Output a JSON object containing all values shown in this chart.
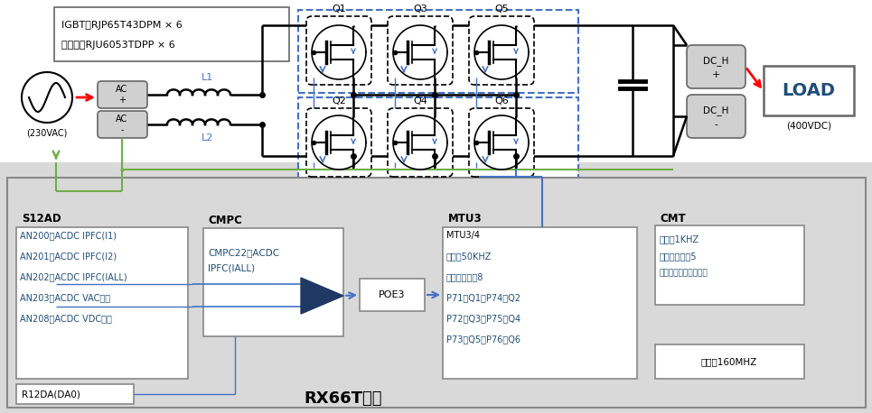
{
  "bg_color": "#ffffff",
  "bottom_bg": "#d9d9d9",
  "igbt_text": "IGBT：RJP65T43DPM × 6",
  "diode_text": "二极管：RJU6053TDPP × 6",
  "ac_source_label": "(230VAC)",
  "load_label": "LOAD",
  "load_sublabel": "(400VDC)",
  "l1_label": "L1",
  "l2_label": "L2",
  "q_labels_top": [
    "Q1",
    "Q3",
    "Q5"
  ],
  "q_labels_bot": [
    "Q2",
    "Q4",
    "Q6"
  ],
  "s12ad_title": "S12AD",
  "s12ad_lines": [
    "AN200：ACDC IPFC(I1)",
    "AN201：ACDC IPFC(I2)",
    "AN202：ACDC IPFC(IALL)",
    "AN203：ACDC VAC输入",
    "AN208：ACDC VDC输出"
  ],
  "r12da_text": "R12DA(DA0)",
  "cmpc_title": "CMPC",
  "cmpc_lines": [
    "CMPC22：ACDC",
    "IPFC(IALL)"
  ],
  "poe3_label": "POE3",
  "mtu3_title": "MTU3",
  "mtu3_lines": [
    "MTU3/4",
    "载波：50KHZ",
    "中断优先级：8",
    "P71：Q1，P74：Q2",
    "P72：Q3，P75：Q4",
    "P73：Q5，P76：Q6"
  ],
  "cmt_title": "CMT",
  "cmt_lines1": [
    "载波：1KHZ",
    "中断优先级：5",
    "（控制环，如慢序列）"
  ],
  "cmt_clock": "时钟＝160MHZ",
  "rx66t_label": "RX66T系列",
  "text_color": "#1f4e79",
  "black": "#000000",
  "red": "#ff0000",
  "blue": "#4472c4",
  "green": "#70ad47",
  "gray_box": "#d0d0d0",
  "dark_blue": "#1f3864",
  "line_blue": "#4472c4",
  "gray_border": "#808080"
}
